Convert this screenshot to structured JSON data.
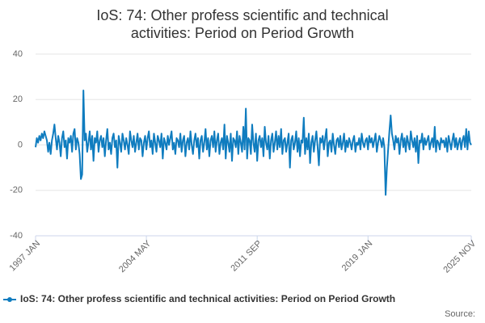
{
  "chart_data": {
    "type": "line",
    "title": "IoS: 74: Other profess scientific and technical activities: Period on Period Growth",
    "source": "Source:",
    "categories": [
      "1997 JAN",
      null,
      null,
      null,
      null,
      null,
      null,
      null,
      null,
      null,
      null,
      null,
      null,
      null,
      null,
      null,
      null,
      null,
      null,
      null,
      null,
      null,
      null,
      null,
      null,
      null,
      null,
      null,
      null,
      null,
      null,
      null,
      null,
      null,
      null,
      null,
      null,
      null,
      null,
      null,
      null,
      null,
      null,
      null,
      null,
      null,
      null,
      null,
      null,
      null,
      null,
      null,
      null,
      null,
      null,
      null,
      null,
      null,
      null,
      null,
      null,
      null,
      null,
      null,
      null,
      null,
      null,
      null,
      null,
      null,
      null,
      null,
      null,
      null,
      null,
      null,
      null,
      null,
      null,
      null,
      null,
      null,
      null,
      null,
      null,
      null,
      null,
      null,
      "2004 MAY",
      null,
      null,
      null,
      null,
      null,
      null,
      null,
      null,
      null,
      null,
      null,
      null,
      null,
      null,
      null,
      null,
      null,
      null,
      null,
      null,
      null,
      null,
      null,
      null,
      null,
      null,
      null,
      null,
      null,
      null,
      null,
      null,
      null,
      null,
      null,
      null,
      null,
      null,
      null,
      null,
      null,
      null,
      null,
      null,
      null,
      null,
      null,
      null,
      null,
      null,
      null,
      null,
      null,
      null,
      null,
      null,
      null,
      null,
      null,
      null,
      null,
      null,
      null,
      null,
      null,
      null,
      null,
      null,
      null,
      null,
      null,
      null,
      null,
      null,
      null,
      null,
      null,
      null,
      null,
      null,
      null,
      null,
      null,
      null,
      null,
      null,
      null,
      "2011 SEP",
      null,
      null,
      null,
      null,
      null,
      null,
      null,
      null,
      null,
      null,
      null,
      null,
      null,
      null,
      null,
      null,
      null,
      null,
      null,
      null,
      null,
      null,
      null,
      null,
      null,
      null,
      null,
      null,
      null,
      null,
      null,
      null,
      null,
      null,
      null,
      null,
      null,
      null,
      null,
      null,
      null,
      null,
      null,
      null,
      null,
      null,
      null,
      null,
      null,
      null,
      null,
      null,
      null,
      null,
      null,
      null,
      null,
      null,
      null,
      null,
      null,
      null,
      null,
      null,
      null,
      null,
      null,
      null,
      null,
      null,
      null,
      null,
      null,
      null,
      null,
      null,
      null,
      null,
      null,
      null,
      null,
      null,
      null,
      null,
      null,
      null,
      null,
      "2019 JAN",
      null,
      null,
      null,
      null,
      null,
      null,
      null,
      null,
      null,
      null,
      null,
      null,
      null,
      null,
      null,
      null,
      null,
      null,
      null,
      null,
      null,
      null,
      null,
      null,
      null,
      null,
      null,
      null,
      null,
      null,
      null,
      null,
      null,
      null,
      null,
      null,
      null,
      null,
      null,
      null,
      null,
      null,
      null,
      null,
      null,
      null,
      null,
      null,
      null,
      null,
      null,
      null,
      null,
      null,
      null,
      null,
      null,
      null,
      null,
      null,
      null,
      null,
      null,
      null,
      null,
      null,
      null,
      null,
      null,
      null,
      null,
      null,
      null,
      null,
      null,
      null,
      null,
      null,
      null,
      null,
      null,
      "2025 NOV"
    ],
    "series": [
      {
        "name": "IoS: 74: Other profess scientific and technical activities: Period on Period Growth",
        "color": "#0f7cbf",
        "values": [
          -1,
          3,
          1,
          4,
          2,
          5,
          3,
          6,
          4,
          2,
          -3,
          1,
          -4,
          2,
          5,
          9,
          3,
          -2,
          4,
          1,
          -5,
          3,
          6,
          -1,
          2,
          -6,
          3,
          1,
          4,
          -3,
          5,
          7,
          -2,
          3,
          1,
          -4,
          -15,
          -13,
          24,
          2,
          5,
          -3,
          1,
          6,
          -2,
          4,
          -7,
          3,
          1,
          6,
          -3,
          2,
          4,
          -1,
          3,
          -5,
          2,
          7,
          -2,
          1,
          -4,
          3,
          5,
          -1,
          2,
          -10,
          4,
          1,
          -3,
          5,
          2,
          -2,
          3,
          0,
          -4,
          6,
          2,
          -1,
          4,
          -3,
          1,
          5,
          -2,
          3,
          2,
          -5,
          1,
          4,
          -2,
          3,
          6,
          -1,
          2,
          -4,
          5,
          1,
          -3,
          4,
          2,
          -1,
          5,
          -6,
          3,
          1,
          -2,
          4,
          0,
          3,
          6,
          -2,
          1,
          -4,
          3,
          2,
          -1,
          5,
          -3,
          2,
          4,
          -5,
          1,
          3,
          -2,
          6,
          0,
          -4,
          2,
          5,
          -1,
          3,
          -6,
          2,
          4,
          -3,
          1,
          7,
          -2,
          3,
          -5,
          2,
          4,
          -1,
          6,
          -3,
          2,
          5,
          -4,
          1,
          3,
          -2,
          9,
          -6,
          4,
          1,
          -3,
          5,
          -7,
          3,
          2,
          -1,
          6,
          -4,
          4,
          1,
          -3,
          8,
          -2,
          16,
          -6,
          3,
          2,
          -4,
          9,
          1,
          -3,
          5,
          -7,
          2,
          4,
          -1,
          3,
          -5,
          8,
          1,
          -2,
          4,
          -6,
          2,
          5,
          -3,
          1,
          6,
          -2,
          4,
          -1,
          7,
          -4,
          2,
          3,
          -3,
          1,
          5,
          -10,
          2,
          4,
          -2,
          1,
          6,
          -3,
          3,
          -5,
          2,
          1,
          12,
          -4,
          3,
          -2,
          5,
          -8,
          1,
          4,
          -3,
          2,
          6,
          -1,
          -9,
          3,
          1,
          4,
          -2,
          3,
          7,
          -5,
          1,
          2,
          -3,
          5,
          0,
          -4,
          2,
          3,
          -1,
          4,
          -2,
          1,
          5,
          -3,
          2,
          -1,
          3,
          1,
          -2,
          2,
          4,
          -3,
          1,
          0,
          3,
          -2,
          5,
          1,
          -1,
          2,
          3,
          -2,
          4,
          1,
          3,
          -1,
          2,
          5,
          -3,
          1,
          4,
          2,
          -1,
          3,
          -1,
          -22,
          -10,
          -2,
          6,
          13,
          5,
          2,
          -2,
          4,
          1,
          3,
          -4,
          2,
          5,
          -1,
          3,
          -3,
          4,
          1,
          -2,
          6,
          2,
          -1,
          3,
          -3,
          4,
          -8,
          2,
          1,
          5,
          -2,
          3,
          0,
          2,
          4,
          -2,
          1,
          3,
          -1,
          8,
          -3,
          2,
          1,
          -2,
          3,
          1,
          2,
          -1,
          3,
          -3,
          4,
          1,
          -2,
          2,
          5,
          -1,
          3,
          -2,
          1,
          3,
          -2,
          2,
          4,
          -1,
          7,
          -2,
          6,
          1,
          0
        ]
      }
    ],
    "ylim": [
      -40,
      40
    ],
    "yticks": [
      -40,
      -20,
      0,
      20,
      40
    ],
    "grid": true
  }
}
